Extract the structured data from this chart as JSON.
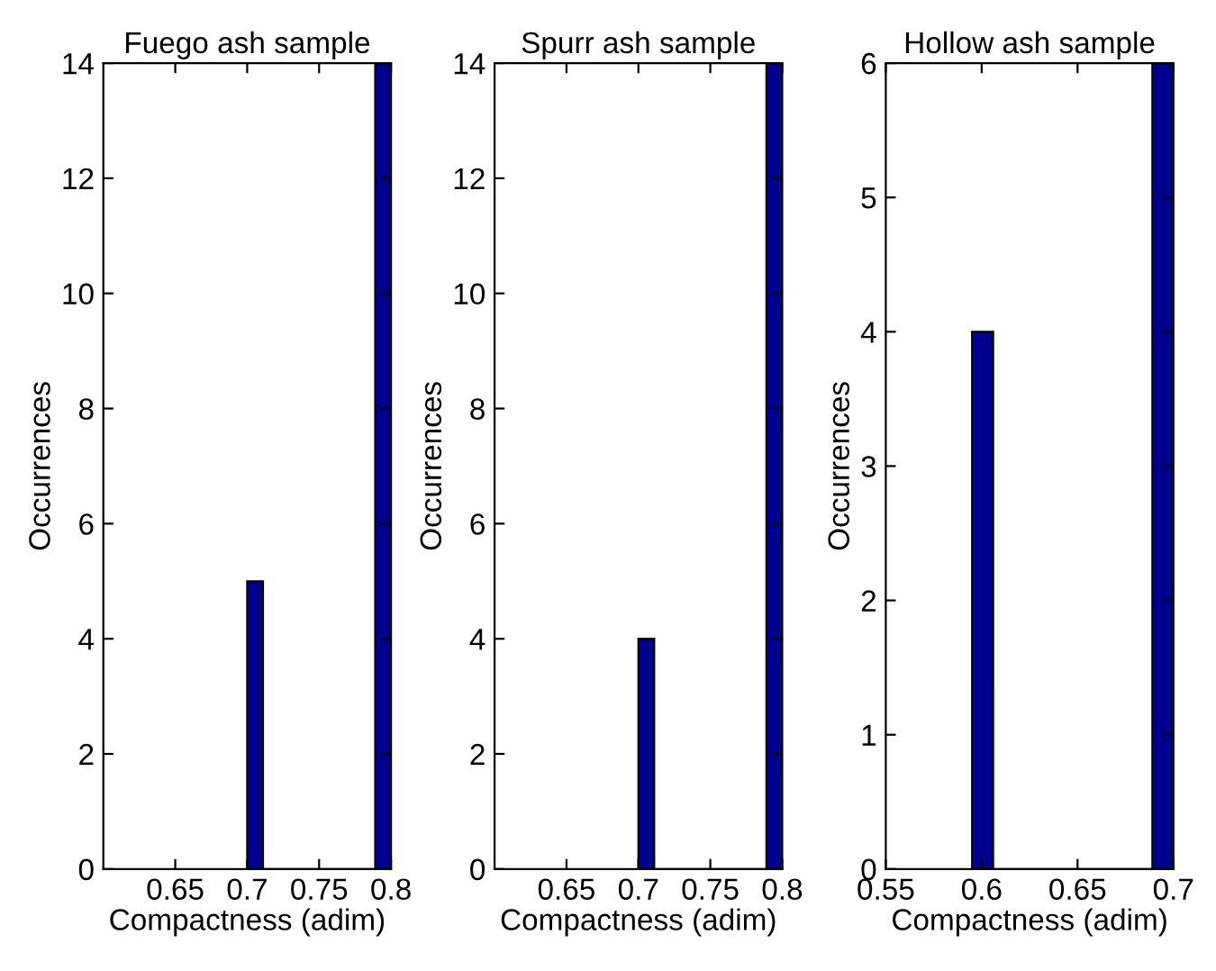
{
  "chart_data": [
    {
      "type": "histogram",
      "title": "Fuego ash sample",
      "xlabel": "Compactness (adim)",
      "ylabel": "Occurrences",
      "bins": [
        0.7,
        0.711,
        0.789,
        0.8
      ],
      "values": [
        5,
        0,
        14
      ],
      "color": "#00008f",
      "xlim": [
        0.6,
        0.8
      ],
      "xticks": [
        0.65,
        0.7,
        0.75,
        0.8
      ],
      "ylim": [
        0,
        14
      ],
      "yticks": [
        0,
        2,
        4,
        6,
        8,
        10,
        12,
        14
      ],
      "grid": false
    },
    {
      "type": "histogram",
      "title": "Spurr ash sample",
      "xlabel": "Compactness (adim)",
      "ylabel": "Occurrences",
      "bins": [
        0.7,
        0.711,
        0.789,
        0.8
      ],
      "values": [
        4,
        0,
        14
      ],
      "color": "#00008f",
      "xlim": [
        0.6,
        0.8
      ],
      "xticks": [
        0.65,
        0.7,
        0.75,
        0.8
      ],
      "ylim": [
        0,
        14
      ],
      "yticks": [
        0,
        2,
        4,
        6,
        8,
        10,
        12,
        14
      ],
      "grid": false
    },
    {
      "type": "histogram",
      "title": "Hollow ash sample",
      "xlabel": "Compactness (adim)",
      "ylabel": "Occurrences",
      "bins": [
        0.595,
        0.606,
        0.689,
        0.7
      ],
      "values": [
        4,
        0,
        6
      ],
      "color": "#00008f",
      "xlim": [
        0.55,
        0.7
      ],
      "xticks": [
        0.55,
        0.6,
        0.65,
        0.7
      ],
      "ylim": [
        0,
        6
      ],
      "yticks": [
        0,
        1,
        2,
        3,
        4,
        5,
        6
      ],
      "grid": false
    }
  ]
}
